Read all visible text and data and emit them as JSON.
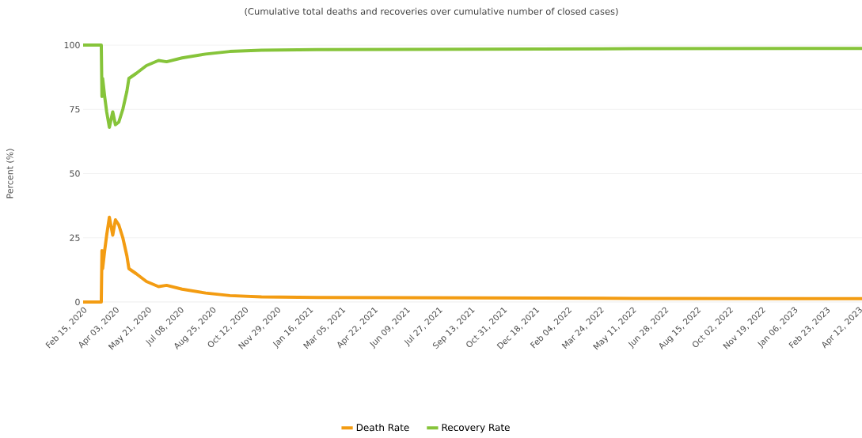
{
  "chart_data": {
    "type": "line",
    "title": "(Cumulative total deaths and recoveries over cumulative number of closed cases)",
    "ylabel": "Percent (%)",
    "x": [
      "2020-02-15",
      "2020-03-13",
      "2020-03-14",
      "2020-03-15",
      "2020-03-18",
      "2020-03-21",
      "2020-03-25",
      "2020-03-30",
      "2020-04-03",
      "2020-04-08",
      "2020-04-14",
      "2020-04-20",
      "2020-04-23",
      "2020-05-04",
      "2020-05-19",
      "2020-06-06",
      "2020-06-18",
      "2020-07-11",
      "2020-08-15",
      "2020-09-20",
      "2020-11-06",
      "2021-01-27",
      "2021-09-19",
      "2022-05-13",
      "2023-04-17"
    ],
    "series": [
      {
        "name": "Death Rate",
        "color": "#f39c12",
        "values": [
          0,
          0,
          20,
          13,
          20,
          26,
          33,
          26,
          32,
          30,
          25,
          18,
          13,
          11,
          8,
          6,
          6.5,
          5,
          3.5,
          2.5,
          2,
          1.8,
          1.6,
          1.4,
          1.3
        ]
      },
      {
        "name": "Recovery Rate",
        "color": "#86c43a",
        "values": [
          100,
          100,
          80,
          87,
          80,
          74,
          68,
          74,
          69,
          70,
          75,
          82,
          87,
          89,
          92,
          94,
          93.5,
          95,
          96.5,
          97.5,
          98,
          98.2,
          98.4,
          98.6,
          98.7
        ]
      }
    ],
    "xlim": [
      "2020-02-15",
      "2023-04-17"
    ],
    "xticks": [
      {
        "value": "2020-02-15",
        "label": "Feb 15, 2020"
      },
      {
        "value": "2020-04-03",
        "label": "Apr 03, 2020"
      },
      {
        "value": "2020-05-21",
        "label": "May 21, 2020"
      },
      {
        "value": "2020-07-08",
        "label": "Jul 08, 2020"
      },
      {
        "value": "2020-08-25",
        "label": "Aug 25, 2020"
      },
      {
        "value": "2020-10-12",
        "label": "Oct 12, 2020"
      },
      {
        "value": "2020-11-29",
        "label": "Nov 29, 2020"
      },
      {
        "value": "2021-01-16",
        "label": "Jan 16, 2021"
      },
      {
        "value": "2021-03-05",
        "label": "Mar 05, 2021"
      },
      {
        "value": "2021-04-22",
        "label": "Apr 22, 2021"
      },
      {
        "value": "2021-06-09",
        "label": "Jun 09, 2021"
      },
      {
        "value": "2021-07-27",
        "label": "Jul 27, 2021"
      },
      {
        "value": "2021-09-13",
        "label": "Sep 13, 2021"
      },
      {
        "value": "2021-10-31",
        "label": "Oct 31, 2021"
      },
      {
        "value": "2021-12-18",
        "label": "Dec 18, 2021"
      },
      {
        "value": "2022-02-04",
        "label": "Feb 04, 2022"
      },
      {
        "value": "2022-03-24",
        "label": "Mar 24, 2022"
      },
      {
        "value": "2022-05-11",
        "label": "May 11, 2022"
      },
      {
        "value": "2022-06-28",
        "label": "Jun 28, 2022"
      },
      {
        "value": "2022-08-15",
        "label": "Aug 15, 2022"
      },
      {
        "value": "2022-10-02",
        "label": "Oct 02, 2022"
      },
      {
        "value": "2022-11-19",
        "label": "Nov 19, 2022"
      },
      {
        "value": "2023-01-06",
        "label": "Jan 06, 2023"
      },
      {
        "value": "2023-02-23",
        "label": "Feb 23, 2023"
      },
      {
        "value": "2023-04-12",
        "label": "Apr 12, 2023"
      }
    ],
    "ylim": [
      0,
      100
    ],
    "yticks": [
      0,
      25,
      50,
      75,
      100
    ],
    "grid": "y",
    "legend": "bottom",
    "marker": "none",
    "line_style": "solid"
  }
}
